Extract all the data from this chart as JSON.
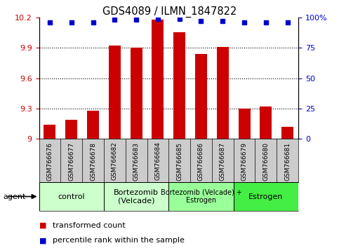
{
  "title": "GDS4089 / ILMN_1847822",
  "samples": [
    "GSM766676",
    "GSM766677",
    "GSM766678",
    "GSM766682",
    "GSM766683",
    "GSM766684",
    "GSM766685",
    "GSM766686",
    "GSM766687",
    "GSM766679",
    "GSM766680",
    "GSM766681"
  ],
  "red_values": [
    9.14,
    9.19,
    9.28,
    9.92,
    9.9,
    10.18,
    10.05,
    9.84,
    9.91,
    9.3,
    9.32,
    9.12
  ],
  "blue_values": [
    96,
    96,
    96,
    98,
    98,
    99,
    99,
    97,
    97,
    96,
    96,
    96
  ],
  "ylim_left": [
    9.0,
    10.2
  ],
  "ylim_right": [
    0,
    100
  ],
  "yticks_left": [
    9.0,
    9.3,
    9.6,
    9.9,
    10.2
  ],
  "yticks_right": [
    0,
    25,
    50,
    75,
    100
  ],
  "ytick_labels_left": [
    "9",
    "9.3",
    "9.6",
    "9.9",
    "10.2"
  ],
  "ytick_labels_right": [
    "0",
    "25",
    "50",
    "75",
    "100%"
  ],
  "groups": [
    {
      "label": "control",
      "start": 0,
      "end": 3,
      "color": "#ccffcc"
    },
    {
      "label": "Bortezomib\n(Velcade)",
      "start": 3,
      "end": 6,
      "color": "#ccffcc"
    },
    {
      "label": "Bortezomib (Velcade) +\nEstrogen",
      "start": 6,
      "end": 9,
      "color": "#99ff99"
    },
    {
      "label": "Estrogen",
      "start": 9,
      "end": 12,
      "color": "#44ee44"
    }
  ],
  "bar_color": "#cc0000",
  "dot_color": "#0000cc",
  "bg_color": "#ffffff",
  "xlabels_bg": "#cccccc",
  "legend_red": "transformed count",
  "legend_blue": "percentile rank within the sample",
  "agent_label": "agent"
}
